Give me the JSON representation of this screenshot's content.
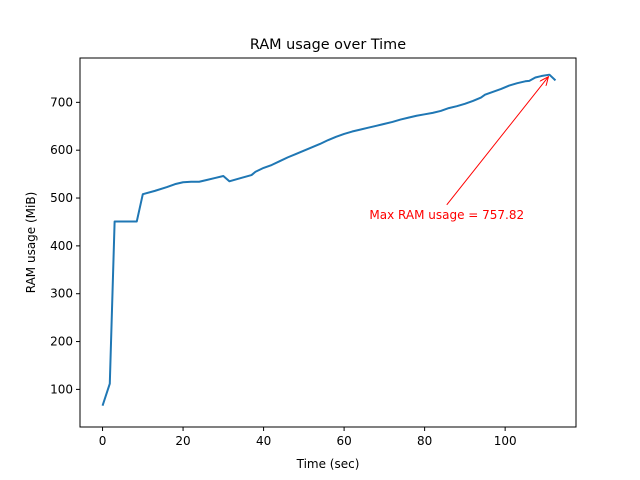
{
  "chart_data": {
    "type": "line",
    "title": "RAM usage over Time",
    "xlabel": "Time (sec)",
    "ylabel": "RAM usage (MiB)",
    "xlim": [
      -5.6,
      117.6
    ],
    "ylim": [
      21.4,
      792.7
    ],
    "xticks": [
      0,
      20,
      40,
      60,
      80,
      100
    ],
    "yticks": [
      100,
      200,
      300,
      400,
      500,
      600,
      700
    ],
    "grid": false,
    "series": [
      {
        "color": "#1f77b4",
        "x": [
          0,
          1.8,
          3,
          8.5,
          10,
          13,
          16,
          18,
          20,
          22,
          24,
          26,
          28,
          30,
          31.5,
          34,
          37,
          38,
          40,
          42,
          44,
          46,
          48,
          50,
          52,
          54,
          56,
          58,
          60,
          62,
          64,
          66,
          68,
          70,
          72,
          74,
          76,
          78,
          80,
          82,
          84,
          86,
          88,
          90,
          92,
          94,
          95,
          97,
          99,
          101,
          103,
          105,
          106,
          107.5,
          109,
          111,
          112.5
        ],
        "values": [
          66,
          112,
          451,
          451,
          508,
          515,
          523,
          529,
          533,
          534,
          534,
          538,
          542,
          546,
          535,
          541,
          548,
          555,
          563,
          569,
          577,
          585,
          592,
          599,
          606,
          613,
          621,
          628,
          634,
          639,
          643,
          647,
          651,
          655,
          659,
          664,
          668,
          672,
          675,
          678,
          682,
          688,
          692,
          697,
          703,
          710,
          716,
          722,
          728,
          735,
          740,
          744,
          745,
          752,
          755,
          757.82,
          746
        ]
      }
    ],
    "annotations": [
      {
        "text": "Max RAM usage = 757.82",
        "color": "#ff0000",
        "point": [
          111,
          757.82
        ],
        "text_anchor": [
          85.5,
          465
        ]
      }
    ]
  }
}
